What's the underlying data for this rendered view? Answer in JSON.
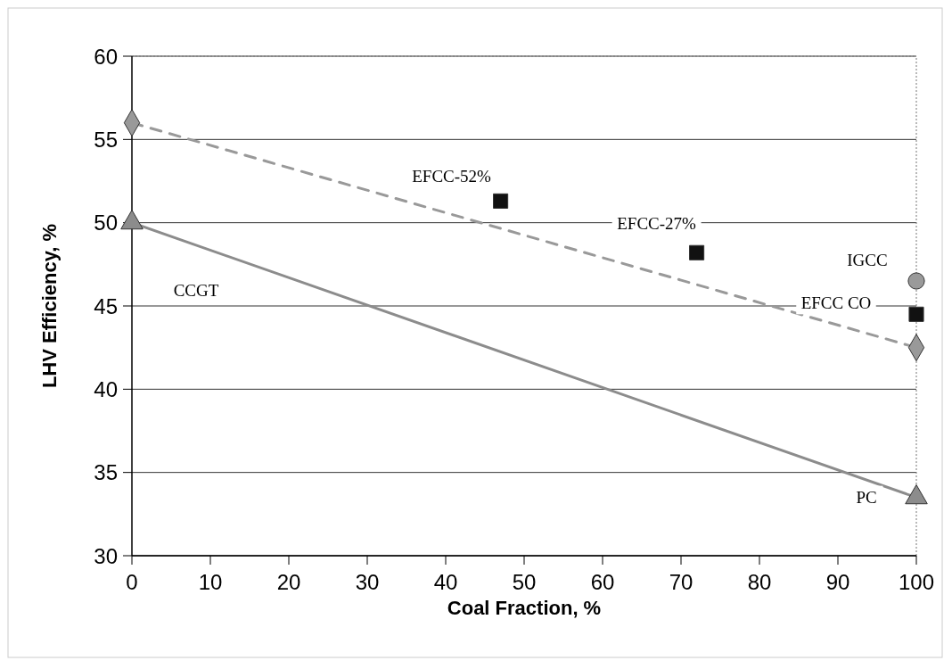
{
  "chart_data": {
    "type": "line",
    "xlabel": "Coal Fraction, %",
    "ylabel": "LHV Efficiency, %",
    "xlim": [
      0,
      100
    ],
    "xticks": [
      0,
      10,
      20,
      30,
      40,
      50,
      60,
      70,
      80,
      90,
      100
    ],
    "ylim": [
      30,
      60
    ],
    "yticks": [
      30,
      35,
      40,
      45,
      50,
      55,
      60
    ],
    "grid": "y",
    "legend": false,
    "series": [
      {
        "color": "#8c8c8c",
        "x": [
          0,
          100
        ],
        "values": [
          50,
          33.5
        ],
        "marker": "triangle",
        "line_style": "solid"
      },
      {
        "color": "#999999",
        "x": [
          0,
          100
        ],
        "values": [
          56,
          42.5
        ],
        "marker": "diamond",
        "line_style": "dashed"
      },
      {
        "type": "scatter",
        "color": "#111111",
        "x": [
          47,
          72,
          100
        ],
        "values": [
          51.3,
          48.2,
          44.5
        ],
        "marker": "square"
      },
      {
        "type": "scatter",
        "color": "#9a9a9a",
        "x": [
          100
        ],
        "values": [
          46.5
        ],
        "marker": "circle"
      }
    ],
    "annotations": [
      "CCGT",
      {
        "text": "EFCC-52%",
        "x": 47,
        "y": 51.3
      },
      {
        "text": "EFCC-27%",
        "x": 72,
        "y": 48.2
      },
      {
        "text": "IGCC",
        "x": 100,
        "y": 46.5
      },
      {
        "text": "EFCC CO",
        "x": 100,
        "y": 44.5
      },
      {
        "text": "PC",
        "x": 100,
        "y": 33.5
      }
    ]
  }
}
